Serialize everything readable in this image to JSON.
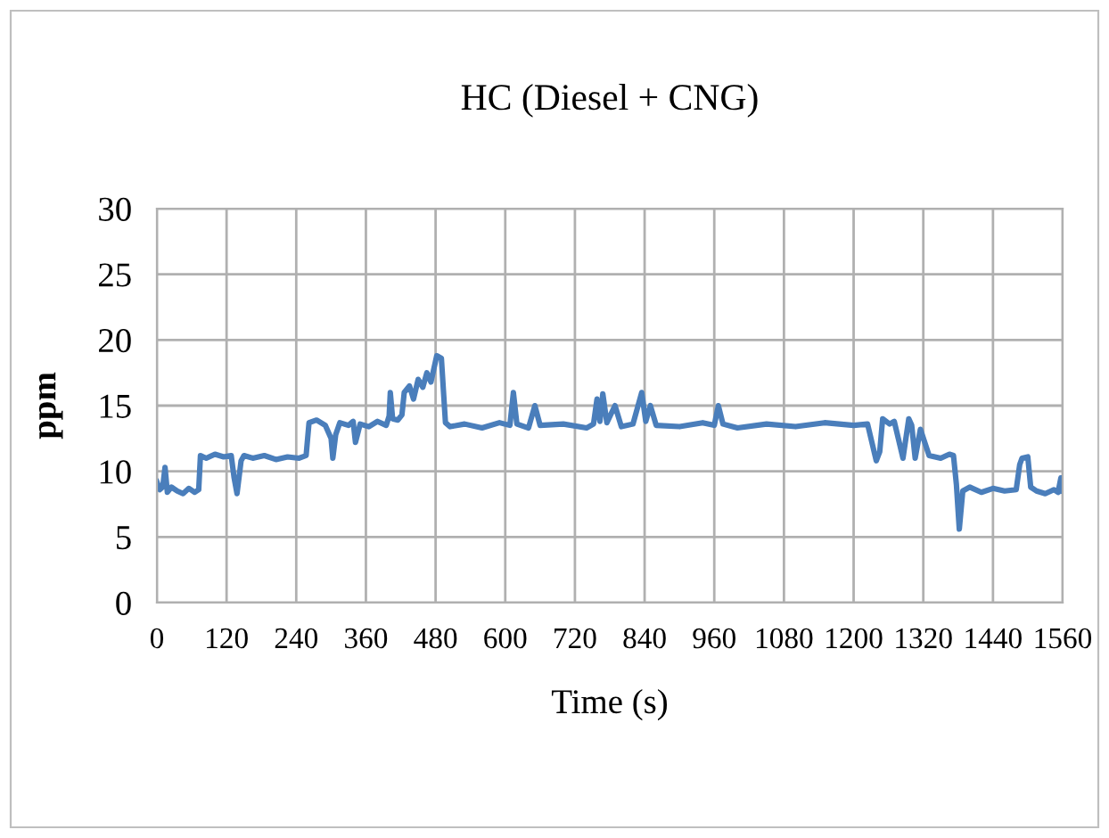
{
  "chart_data": {
    "type": "line",
    "title": "HC (Diesel + CNG)",
    "xlabel": "Time (s)",
    "ylabel": "ppm",
    "series": [
      {
        "color": "#4a7ebb",
        "x": [
          0,
          5,
          10,
          14,
          18,
          25,
          35,
          45,
          55,
          65,
          72,
          75,
          85,
          100,
          115,
          128,
          133,
          138,
          145,
          150,
          165,
          185,
          205,
          225,
          245,
          257,
          262,
          275,
          290,
          300,
          303,
          308,
          315,
          330,
          338,
          342,
          350,
          365,
          380,
          395,
          400,
          402,
          406,
          415,
          422,
          426,
          435,
          442,
          450,
          458,
          465,
          472,
          482,
          490,
          497,
          505,
          530,
          560,
          590,
          608,
          614,
          620,
          640,
          651,
          660,
          700,
          740,
          752,
          758,
          763,
          768,
          775,
          789,
          800,
          820,
          835,
          842,
          850,
          860,
          900,
          940,
          960,
          967,
          975,
          1000,
          1050,
          1100,
          1150,
          1200,
          1224,
          1239,
          1245,
          1250,
          1262,
          1270,
          1285,
          1295,
          1300,
          1306,
          1315,
          1330,
          1350,
          1365,
          1372,
          1377,
          1382,
          1388,
          1400,
          1420,
          1440,
          1460,
          1480,
          1486,
          1490,
          1500,
          1505,
          1515,
          1530,
          1545,
          1552,
          1557,
          1560
        ],
        "values": [
          9.2,
          8.6,
          8.8,
          10.3,
          8.4,
          8.8,
          8.5,
          8.3,
          8.7,
          8.4,
          8.6,
          11.2,
          11.0,
          11.3,
          11.1,
          11.2,
          9.5,
          8.3,
          10.8,
          11.2,
          11.0,
          11.2,
          10.9,
          11.1,
          11.0,
          11.2,
          13.7,
          13.9,
          13.5,
          12.5,
          11.0,
          12.8,
          13.7,
          13.5,
          13.8,
          12.2,
          13.6,
          13.4,
          13.8,
          13.5,
          14.2,
          16.0,
          14.0,
          13.9,
          14.3,
          16.0,
          16.5,
          15.5,
          17.0,
          16.4,
          17.5,
          16.8,
          18.8,
          18.6,
          13.7,
          13.4,
          13.6,
          13.3,
          13.7,
          13.5,
          16.0,
          13.6,
          13.3,
          15.0,
          13.5,
          13.6,
          13.3,
          13.6,
          15.5,
          13.8,
          15.9,
          13.7,
          15.0,
          13.4,
          13.6,
          16.0,
          13.8,
          15.0,
          13.5,
          13.4,
          13.7,
          13.5,
          15.0,
          13.6,
          13.3,
          13.6,
          13.4,
          13.7,
          13.5,
          13.6,
          10.8,
          11.5,
          14.0,
          13.6,
          13.8,
          11.0,
          14.0,
          13.5,
          11.0,
          13.2,
          11.2,
          11.0,
          11.3,
          11.2,
          9.0,
          5.6,
          8.5,
          8.8,
          8.4,
          8.7,
          8.5,
          8.6,
          10.5,
          11.0,
          11.1,
          8.8,
          8.5,
          8.3,
          8.6,
          8.4,
          9.5,
          8.5
        ]
      }
    ],
    "xlim": [
      0,
      1560
    ],
    "xticks": [
      0,
      120,
      240,
      360,
      480,
      600,
      720,
      840,
      960,
      1080,
      1200,
      1320,
      1440,
      1560
    ],
    "ylim": [
      0,
      30
    ],
    "yticks": [
      0,
      5,
      10,
      15,
      20,
      25,
      30
    ],
    "grid": true,
    "legend": false
  }
}
